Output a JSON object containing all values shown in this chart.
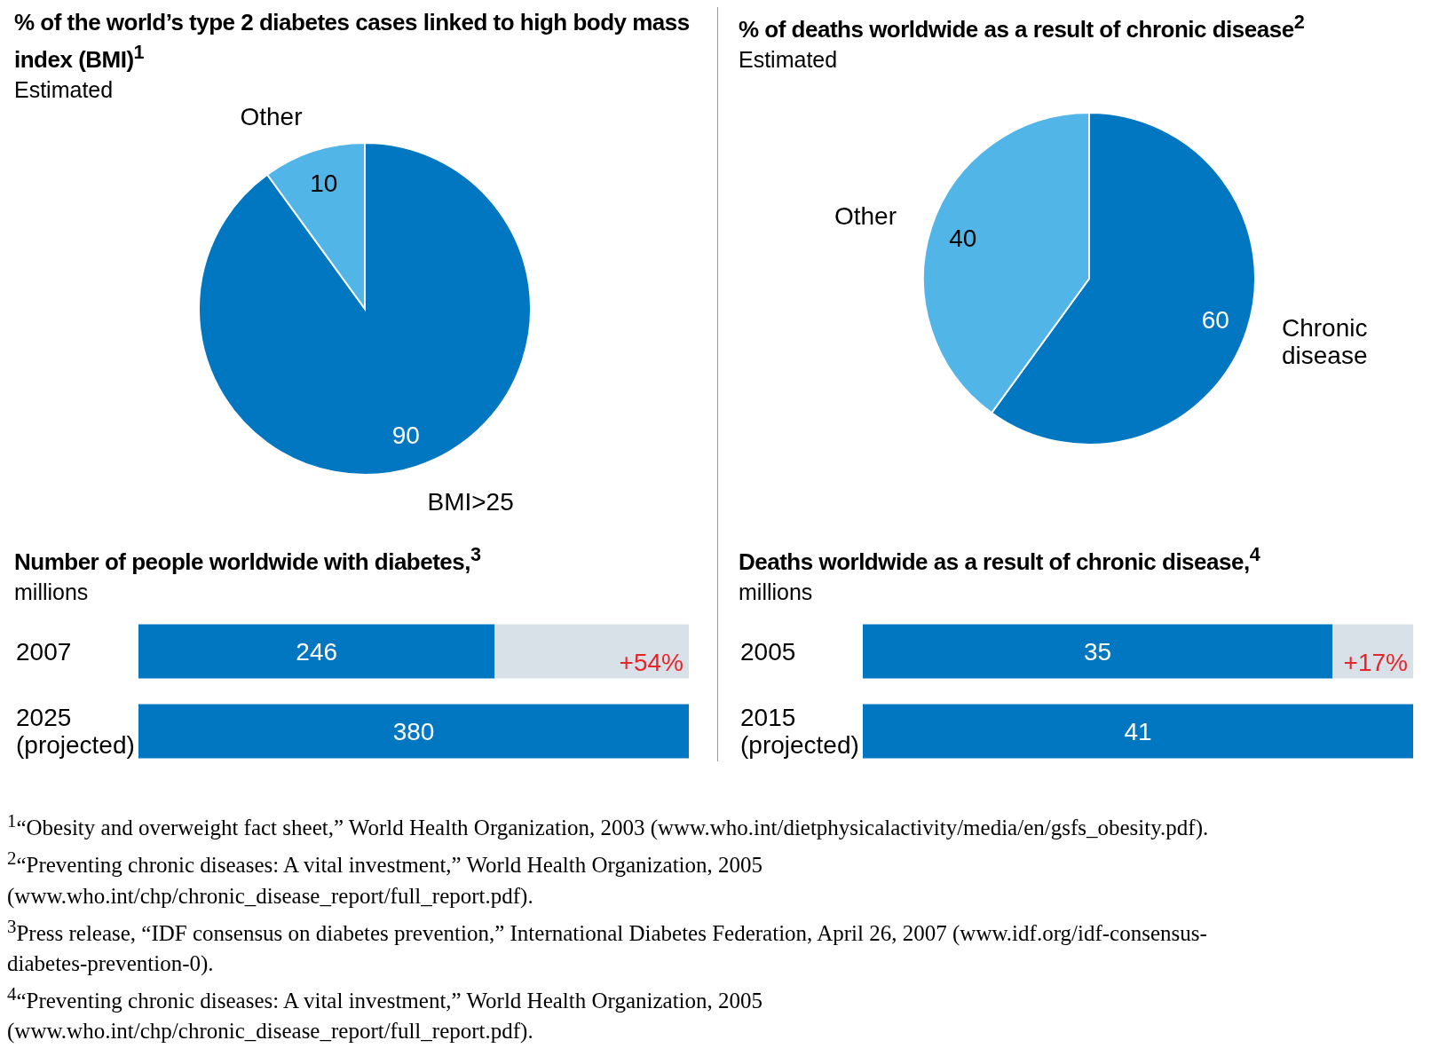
{
  "chart_data": [
    {
      "type": "pie",
      "title": "% of the world’s type 2 diabetes cases linked to high body mass index (BMI)$^{1}$",
      "subtitle": "Estimated",
      "categories": [
        "BMI>25",
        "Other"
      ],
      "values": [
        90,
        10
      ],
      "colors": [
        "#0077c0",
        "#52b5e8"
      ],
      "data_labels": true,
      "annotations": [
        "$^{1}$“Obesity and overweight fact sheet,” World Health Organization, 2003 (www.who.int/dietphysicalactivity/media/en/gsfs_obesity.pdf)."
      ]
    },
    {
      "type": "pie",
      "title": "% of deaths worldwide as a result of chronic disease$^{2}$",
      "subtitle": "Estimated",
      "categories": [
        "Chronic disease",
        "Other"
      ],
      "values": [
        60,
        40
      ],
      "colors": [
        "#0077c0",
        "#52b5e8"
      ],
      "data_labels": true,
      "annotations": [
        "$^{2}$“Preventing chronic diseases: A vital investment,” World Health Organization, 2005 (www.who.int/chp/chronic_disease_report/full_report.pdf)."
      ]
    },
    {
      "type": "bar",
      "orientation": "horizontal",
      "stacked": true,
      "title": "Number of people worldwide with diabetes,$^{3}$",
      "subtitle": "millions",
      "categories": [
        "2007",
        "2025 (projected)"
      ],
      "series": [
        {
          "color": "#0077c0",
          "values": [
            246,
            380
          ],
          "value_labels": [
            "246",
            "380"
          ]
        },
        {
          "color": "#d8e1e8",
          "values": [
            134,
            null
          ]
        }
      ],
      "annotations": [
        {
          "text": "+54%",
          "x": 380,
          "y": "2007"
        },
        "$^{3}$Press release, “IDF consensus on diabetes prevention,” International Diabetes Federation, April 26, 2007 (www.idf.org/idf-consensus-diabetes-prevention-0)."
      ]
    },
    {
      "type": "bar",
      "orientation": "horizontal",
      "stacked": true,
      "title": "Deaths worldwide as a result of chronic disease,$^{4}$",
      "subtitle": "millions",
      "categories": [
        "2005",
        "2015 (projected)"
      ],
      "series": [
        {
          "color": "#0077c0",
          "values": [
            35,
            41
          ],
          "value_labels": [
            "35",
            "41"
          ]
        },
        {
          "color": "#d8e1e8",
          "values": [
            6,
            null
          ]
        }
      ],
      "annotations": [
        {
          "text": "+17%",
          "x": 41,
          "y": "2005"
        },
        "$^{4}$“Preventing chronic diseases: A vital investment,” World Health Organization, 2005 (www.who.int/chp/chronic_disease_report/full_report.pdf)."
      ]
    }
  ]
}
